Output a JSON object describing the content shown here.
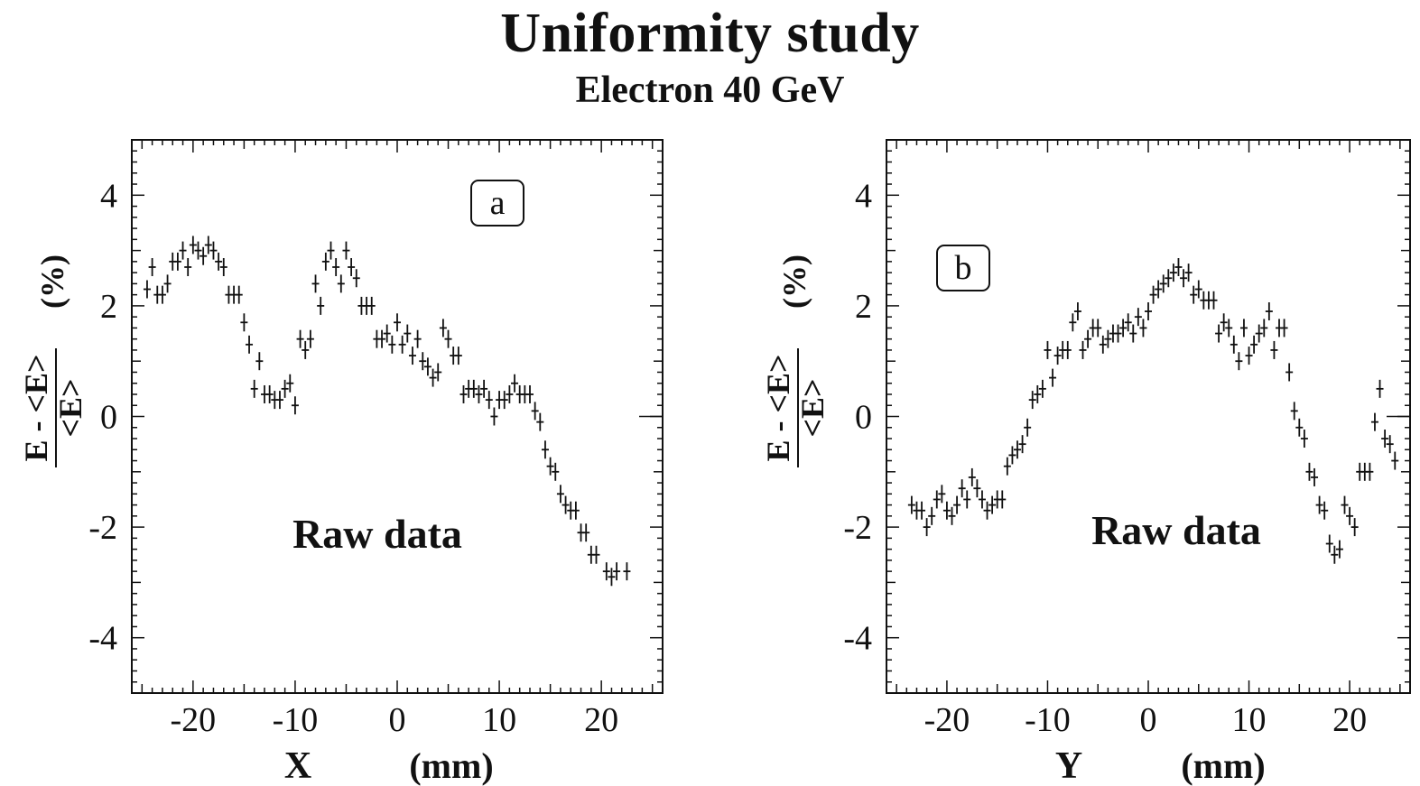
{
  "title": "Uniformity study",
  "subtitle": "Electron 40 GeV",
  "chart_data": [
    {
      "type": "scatter",
      "panel_label": "a",
      "annotation": "Raw data",
      "xlabel": "X",
      "xunit": "(mm)",
      "ylabel_numerator": "E - <E>",
      "ylabel_denominator": "<E>",
      "yunit": "(%)",
      "xlim": [
        -26,
        26
      ],
      "ylim": [
        -5,
        5
      ],
      "xticks": [
        -20,
        -10,
        0,
        10,
        20
      ],
      "yticks": [
        -4,
        -2,
        0,
        2,
        4
      ],
      "reference_line": 0,
      "points": [
        {
          "x": -24.5,
          "y": 2.3
        },
        {
          "x": -24.0,
          "y": 2.7
        },
        {
          "x": -23.5,
          "y": 2.2
        },
        {
          "x": -23.0,
          "y": 2.2
        },
        {
          "x": -22.5,
          "y": 2.4
        },
        {
          "x": -22.0,
          "y": 2.8
        },
        {
          "x": -21.5,
          "y": 2.8
        },
        {
          "x": -21.0,
          "y": 3.0
        },
        {
          "x": -20.5,
          "y": 2.7
        },
        {
          "x": -20.0,
          "y": 3.1
        },
        {
          "x": -19.5,
          "y": 3.0
        },
        {
          "x": -19.0,
          "y": 2.9
        },
        {
          "x": -18.5,
          "y": 3.1
        },
        {
          "x": -18.0,
          "y": 3.0
        },
        {
          "x": -17.5,
          "y": 2.8
        },
        {
          "x": -17.0,
          "y": 2.7
        },
        {
          "x": -16.5,
          "y": 2.2
        },
        {
          "x": -16.0,
          "y": 2.2
        },
        {
          "x": -15.5,
          "y": 2.2
        },
        {
          "x": -15.0,
          "y": 1.7
        },
        {
          "x": -14.5,
          "y": 1.3
        },
        {
          "x": -14.0,
          "y": 0.5
        },
        {
          "x": -13.5,
          "y": 1.0
        },
        {
          "x": -13.0,
          "y": 0.4
        },
        {
          "x": -12.5,
          "y": 0.4
        },
        {
          "x": -12.0,
          "y": 0.3
        },
        {
          "x": -11.5,
          "y": 0.3
        },
        {
          "x": -11.0,
          "y": 0.5
        },
        {
          "x": -10.5,
          "y": 0.6
        },
        {
          "x": -10.0,
          "y": 0.2
        },
        {
          "x": -9.5,
          "y": 1.4
        },
        {
          "x": -9.0,
          "y": 1.2
        },
        {
          "x": -8.5,
          "y": 1.4
        },
        {
          "x": -8.0,
          "y": 2.4
        },
        {
          "x": -7.5,
          "y": 2.0
        },
        {
          "x": -7.0,
          "y": 2.8
        },
        {
          "x": -6.5,
          "y": 3.0
        },
        {
          "x": -6.0,
          "y": 2.7
        },
        {
          "x": -5.5,
          "y": 2.4
        },
        {
          "x": -5.0,
          "y": 3.0
        },
        {
          "x": -4.5,
          "y": 2.7
        },
        {
          "x": -4.0,
          "y": 2.5
        },
        {
          "x": -3.5,
          "y": 2.0
        },
        {
          "x": -3.0,
          "y": 2.0
        },
        {
          "x": -2.5,
          "y": 2.0
        },
        {
          "x": -2.0,
          "y": 1.4
        },
        {
          "x": -1.5,
          "y": 1.4
        },
        {
          "x": -1.0,
          "y": 1.5
        },
        {
          "x": -0.5,
          "y": 1.3
        },
        {
          "x": 0.0,
          "y": 1.7
        },
        {
          "x": 0.5,
          "y": 1.3
        },
        {
          "x": 1.0,
          "y": 1.5
        },
        {
          "x": 1.5,
          "y": 1.1
        },
        {
          "x": 2.0,
          "y": 1.4
        },
        {
          "x": 2.5,
          "y": 1.0
        },
        {
          "x": 3.0,
          "y": 0.9
        },
        {
          "x": 3.5,
          "y": 0.7
        },
        {
          "x": 4.0,
          "y": 0.8
        },
        {
          "x": 4.5,
          "y": 1.6
        },
        {
          "x": 5.0,
          "y": 1.4
        },
        {
          "x": 5.5,
          "y": 1.1
        },
        {
          "x": 6.0,
          "y": 1.1
        },
        {
          "x": 6.5,
          "y": 0.4
        },
        {
          "x": 7.0,
          "y": 0.5
        },
        {
          "x": 7.5,
          "y": 0.5
        },
        {
          "x": 8.0,
          "y": 0.4
        },
        {
          "x": 8.5,
          "y": 0.5
        },
        {
          "x": 9.0,
          "y": 0.3
        },
        {
          "x": 9.5,
          "y": 0.0
        },
        {
          "x": 10.0,
          "y": 0.3
        },
        {
          "x": 10.5,
          "y": 0.3
        },
        {
          "x": 11.0,
          "y": 0.4
        },
        {
          "x": 11.5,
          "y": 0.6
        },
        {
          "x": 12.0,
          "y": 0.4
        },
        {
          "x": 12.5,
          "y": 0.4
        },
        {
          "x": 13.0,
          "y": 0.4
        },
        {
          "x": 13.5,
          "y": 0.1
        },
        {
          "x": 14.0,
          "y": -0.1
        },
        {
          "x": 14.5,
          "y": -0.6
        },
        {
          "x": 15.0,
          "y": -0.9
        },
        {
          "x": 15.5,
          "y": -1.0
        },
        {
          "x": 16.0,
          "y": -1.4
        },
        {
          "x": 16.5,
          "y": -1.6
        },
        {
          "x": 17.0,
          "y": -1.7
        },
        {
          "x": 17.5,
          "y": -1.7
        },
        {
          "x": 18.0,
          "y": -2.1
        },
        {
          "x": 18.5,
          "y": -2.1
        },
        {
          "x": 19.0,
          "y": -2.5
        },
        {
          "x": 19.5,
          "y": -2.5
        },
        {
          "x": 20.5,
          "y": -2.8
        },
        {
          "x": 21.0,
          "y": -2.9
        },
        {
          "x": 21.5,
          "y": -2.8
        },
        {
          "x": 22.5,
          "y": -2.8
        }
      ]
    },
    {
      "type": "scatter",
      "panel_label": "b",
      "annotation": "Raw data",
      "xlabel": "Y",
      "xunit": "(mm)",
      "ylabel_numerator": "E - <E>",
      "ylabel_denominator": "<E>",
      "yunit": "(%)",
      "xlim": [
        -26,
        26
      ],
      "ylim": [
        -5,
        5
      ],
      "xticks": [
        -20,
        -10,
        0,
        10,
        20
      ],
      "yticks": [
        -4,
        -2,
        0,
        2,
        4
      ],
      "reference_line": 0,
      "points": [
        {
          "x": -23.5,
          "y": -1.6
        },
        {
          "x": -23.0,
          "y": -1.7
        },
        {
          "x": -22.5,
          "y": -1.7
        },
        {
          "x": -22.0,
          "y": -2.0
        },
        {
          "x": -21.5,
          "y": -1.8
        },
        {
          "x": -21.0,
          "y": -1.5
        },
        {
          "x": -20.5,
          "y": -1.4
        },
        {
          "x": -20.0,
          "y": -1.7
        },
        {
          "x": -19.5,
          "y": -1.8
        },
        {
          "x": -19.0,
          "y": -1.6
        },
        {
          "x": -18.5,
          "y": -1.3
        },
        {
          "x": -18.0,
          "y": -1.5
        },
        {
          "x": -17.5,
          "y": -1.1
        },
        {
          "x": -17.0,
          "y": -1.3
        },
        {
          "x": -16.5,
          "y": -1.5
        },
        {
          "x": -16.0,
          "y": -1.7
        },
        {
          "x": -15.5,
          "y": -1.6
        },
        {
          "x": -15.0,
          "y": -1.5
        },
        {
          "x": -14.5,
          "y": -1.5
        },
        {
          "x": -14.0,
          "y": -0.9
        },
        {
          "x": -13.5,
          "y": -0.7
        },
        {
          "x": -13.0,
          "y": -0.6
        },
        {
          "x": -12.5,
          "y": -0.5
        },
        {
          "x": -12.0,
          "y": -0.2
        },
        {
          "x": -11.5,
          "y": 0.3
        },
        {
          "x": -11.0,
          "y": 0.4
        },
        {
          "x": -10.5,
          "y": 0.5
        },
        {
          "x": -10.0,
          "y": 1.2
        },
        {
          "x": -9.5,
          "y": 0.7
        },
        {
          "x": -9.0,
          "y": 1.1
        },
        {
          "x": -8.5,
          "y": 1.2
        },
        {
          "x": -8.0,
          "y": 1.2
        },
        {
          "x": -7.5,
          "y": 1.7
        },
        {
          "x": -7.0,
          "y": 1.9
        },
        {
          "x": -6.5,
          "y": 1.2
        },
        {
          "x": -6.0,
          "y": 1.4
        },
        {
          "x": -5.5,
          "y": 1.6
        },
        {
          "x": -5.0,
          "y": 1.6
        },
        {
          "x": -4.5,
          "y": 1.3
        },
        {
          "x": -4.0,
          "y": 1.4
        },
        {
          "x": -3.5,
          "y": 1.5
        },
        {
          "x": -3.0,
          "y": 1.5
        },
        {
          "x": -2.5,
          "y": 1.6
        },
        {
          "x": -2.0,
          "y": 1.7
        },
        {
          "x": -1.5,
          "y": 1.5
        },
        {
          "x": -1.0,
          "y": 1.8
        },
        {
          "x": -0.5,
          "y": 1.6
        },
        {
          "x": 0.0,
          "y": 1.9
        },
        {
          "x": 0.5,
          "y": 2.2
        },
        {
          "x": 1.0,
          "y": 2.3
        },
        {
          "x": 1.5,
          "y": 2.4
        },
        {
          "x": 2.0,
          "y": 2.5
        },
        {
          "x": 2.5,
          "y": 2.6
        },
        {
          "x": 3.0,
          "y": 2.7
        },
        {
          "x": 3.5,
          "y": 2.5
        },
        {
          "x": 4.0,
          "y": 2.6
        },
        {
          "x": 4.5,
          "y": 2.2
        },
        {
          "x": 5.0,
          "y": 2.3
        },
        {
          "x": 5.5,
          "y": 2.1
        },
        {
          "x": 6.0,
          "y": 2.1
        },
        {
          "x": 6.5,
          "y": 2.1
        },
        {
          "x": 7.0,
          "y": 1.5
        },
        {
          "x": 7.5,
          "y": 1.7
        },
        {
          "x": 8.0,
          "y": 1.6
        },
        {
          "x": 8.5,
          "y": 1.3
        },
        {
          "x": 9.0,
          "y": 1.0
        },
        {
          "x": 9.5,
          "y": 1.6
        },
        {
          "x": 10.0,
          "y": 1.1
        },
        {
          "x": 10.5,
          "y": 1.3
        },
        {
          "x": 11.0,
          "y": 1.5
        },
        {
          "x": 11.5,
          "y": 1.6
        },
        {
          "x": 12.0,
          "y": 1.9
        },
        {
          "x": 12.5,
          "y": 1.2
        },
        {
          "x": 13.0,
          "y": 1.6
        },
        {
          "x": 13.5,
          "y": 1.6
        },
        {
          "x": 14.0,
          "y": 0.8
        },
        {
          "x": 14.5,
          "y": 0.1
        },
        {
          "x": 15.0,
          "y": -0.2
        },
        {
          "x": 15.5,
          "y": -0.4
        },
        {
          "x": 16.0,
          "y": -1.0
        },
        {
          "x": 16.5,
          "y": -1.1
        },
        {
          "x": 17.0,
          "y": -1.6
        },
        {
          "x": 17.5,
          "y": -1.7
        },
        {
          "x": 18.0,
          "y": -2.3
        },
        {
          "x": 18.5,
          "y": -2.5
        },
        {
          "x": 19.0,
          "y": -2.4
        },
        {
          "x": 19.5,
          "y": -1.6
        },
        {
          "x": 20.0,
          "y": -1.8
        },
        {
          "x": 20.5,
          "y": -2.0
        },
        {
          "x": 21.0,
          "y": -1.0
        },
        {
          "x": 21.5,
          "y": -1.0
        },
        {
          "x": 22.0,
          "y": -1.0
        },
        {
          "x": 22.5,
          "y": -0.1
        },
        {
          "x": 23.0,
          "y": 0.5
        },
        {
          "x": 23.5,
          "y": -0.4
        },
        {
          "x": 24.0,
          "y": -0.5
        },
        {
          "x": 24.5,
          "y": -0.8
        }
      ]
    }
  ]
}
